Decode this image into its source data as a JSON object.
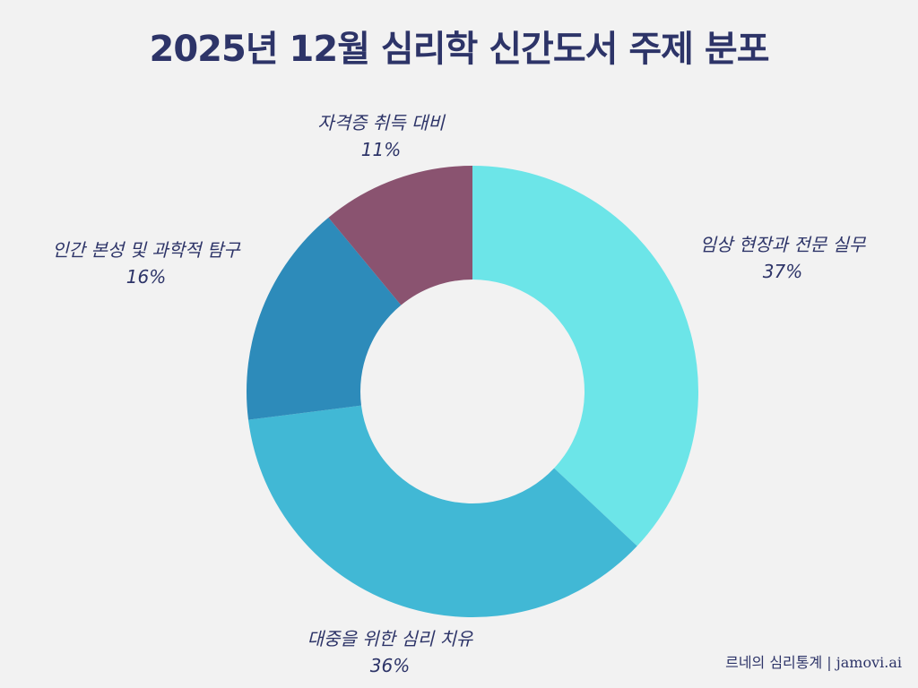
{
  "chart_data": {
    "type": "pie",
    "variant": "donut",
    "title": "2025년 12월 심리학 신간도서 주제 분포",
    "categories": [
      "임상 현장과 전문 실무",
      "대중을 위한 심리 치유",
      "인간 본성 및 과학적 탐구",
      "자격증 취득 대비"
    ],
    "values": [
      37,
      36,
      16,
      11
    ],
    "unit": "%",
    "colors": [
      "#6ce5e8",
      "#41b8d5",
      "#2d8bba",
      "#8a5370"
    ],
    "start_angle": "12 o'clock",
    "direction": "clockwise",
    "legend": "none (direct labels)"
  },
  "title": "2025년 12월 심리학 신간도서 주제 분포",
  "labels": [
    {
      "name": "임상 현장과 전문 실무",
      "pct": "37%"
    },
    {
      "name": "대중을 위한 심리 치유",
      "pct": "36%"
    },
    {
      "name": "인간 본성 및 과학적 탐구",
      "pct": "16%"
    },
    {
      "name": "자격증 취득 대비",
      "pct": "11%"
    }
  ],
  "footer": "르네의 심리통계 | jamovi.ai"
}
